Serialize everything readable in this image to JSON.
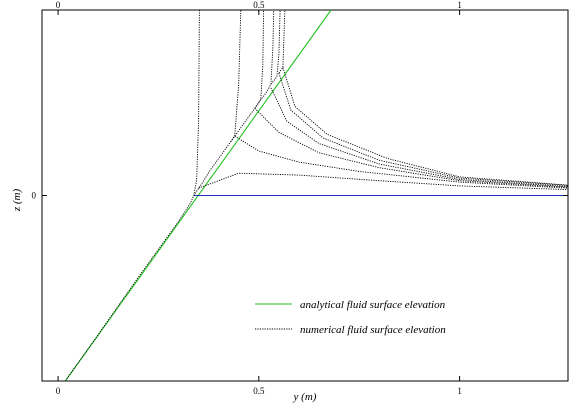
{
  "chart_data": {
    "type": "line",
    "xlabel": "y (m)",
    "ylabel": "z (m)",
    "xlim": [
      -0.04,
      1.27
    ],
    "ylim": [
      -0.5,
      0.5
    ],
    "x_ticks": [
      {
        "value": 0,
        "label": "0"
      },
      {
        "value": 0.5,
        "label": "0.5"
      },
      {
        "value": 1,
        "label": "1"
      }
    ],
    "y_ticks": [
      {
        "value": 0,
        "label": "0"
      }
    ],
    "grid": false,
    "legend_position": "bottom-right",
    "legend": [
      {
        "label": "analytical fluid surface elevation",
        "color": "#22c322",
        "style": "solid"
      },
      {
        "label": "numerical fluid surface elevation",
        "color": "#000000",
        "style": "dotted"
      }
    ],
    "series": [
      {
        "name": "analytical fluid surface elevation",
        "color": "#22c322",
        "style": "solid",
        "points": [
          [
            0.018,
            -0.5
          ],
          [
            0.68,
            0.5
          ]
        ]
      },
      {
        "color": "#1d2fc8",
        "style": "solid",
        "points": [
          [
            0.337,
            0.0
          ],
          [
            1.27,
            0.0
          ]
        ]
      },
      {
        "name": "numerical fluid surface elevation",
        "color": "#000000",
        "style": "dotted",
        "points": [
          [
            0.018,
            -0.5
          ],
          [
            0.1,
            -0.375
          ],
          [
            0.2,
            -0.22
          ],
          [
            0.3,
            -0.07
          ],
          [
            0.33,
            -0.02
          ],
          [
            0.338,
            0.0
          ],
          [
            0.345,
            0.04
          ],
          [
            0.35,
            0.2
          ],
          [
            0.352,
            0.5
          ]
        ]
      },
      {
        "color": "#000000",
        "style": "dotted",
        "points": [
          [
            0.338,
            0.0
          ],
          [
            0.36,
            0.035
          ],
          [
            0.38,
            0.07
          ],
          [
            0.4,
            0.1
          ],
          [
            0.43,
            0.145
          ],
          [
            0.44,
            0.16
          ],
          [
            0.45,
            0.3
          ],
          [
            0.455,
            0.5
          ]
        ]
      },
      {
        "color": "#000000",
        "style": "dotted",
        "points": [
          [
            0.43,
            0.145
          ],
          [
            0.46,
            0.19
          ],
          [
            0.49,
            0.235
          ],
          [
            0.505,
            0.26
          ],
          [
            0.51,
            0.35
          ],
          [
            0.512,
            0.5
          ]
        ]
      },
      {
        "color": "#000000",
        "style": "dotted",
        "points": [
          [
            0.49,
            0.235
          ],
          [
            0.52,
            0.28
          ],
          [
            0.53,
            0.3
          ],
          [
            0.535,
            0.4
          ],
          [
            0.537,
            0.5
          ]
        ]
      },
      {
        "color": "#000000",
        "style": "dotted",
        "points": [
          [
            0.53,
            0.3
          ],
          [
            0.545,
            0.32
          ],
          [
            0.55,
            0.38
          ],
          [
            0.553,
            0.5
          ]
        ]
      },
      {
        "color": "#000000",
        "style": "dotted",
        "points": [
          [
            0.55,
            0.33
          ],
          [
            0.56,
            0.345
          ],
          [
            0.563,
            0.44
          ],
          [
            0.565,
            0.5
          ]
        ]
      },
      {
        "color": "#000000",
        "style": "dotted",
        "points": [
          [
            0.35,
            0.02
          ],
          [
            0.45,
            0.06
          ],
          [
            0.6,
            0.055
          ],
          [
            0.8,
            0.04
          ],
          [
            1.0,
            0.026
          ],
          [
            1.27,
            0.016
          ]
        ]
      },
      {
        "color": "#000000",
        "style": "dotted",
        "points": [
          [
            0.44,
            0.16
          ],
          [
            0.5,
            0.12
          ],
          [
            0.6,
            0.09
          ],
          [
            0.75,
            0.065
          ],
          [
            1.0,
            0.036
          ],
          [
            1.27,
            0.02
          ]
        ]
      },
      {
        "color": "#000000",
        "style": "dotted",
        "points": [
          [
            0.49,
            0.235
          ],
          [
            0.55,
            0.17
          ],
          [
            0.65,
            0.115
          ],
          [
            0.8,
            0.075
          ],
          [
            1.0,
            0.04
          ],
          [
            1.27,
            0.022
          ]
        ]
      },
      {
        "color": "#000000",
        "style": "dotted",
        "points": [
          [
            0.53,
            0.29
          ],
          [
            0.57,
            0.2
          ],
          [
            0.65,
            0.14
          ],
          [
            0.8,
            0.085
          ],
          [
            1.0,
            0.043
          ],
          [
            1.27,
            0.024
          ]
        ]
      },
      {
        "color": "#000000",
        "style": "dotted",
        "points": [
          [
            0.55,
            0.33
          ],
          [
            0.58,
            0.23
          ],
          [
            0.66,
            0.155
          ],
          [
            0.8,
            0.095
          ],
          [
            1.0,
            0.047
          ],
          [
            1.27,
            0.027
          ]
        ]
      },
      {
        "color": "#000000",
        "style": "dotted",
        "points": [
          [
            0.56,
            0.345
          ],
          [
            0.59,
            0.24
          ],
          [
            0.67,
            0.165
          ],
          [
            0.82,
            0.1
          ],
          [
            1.0,
            0.05
          ],
          [
            1.27,
            0.028
          ]
        ]
      }
    ]
  }
}
